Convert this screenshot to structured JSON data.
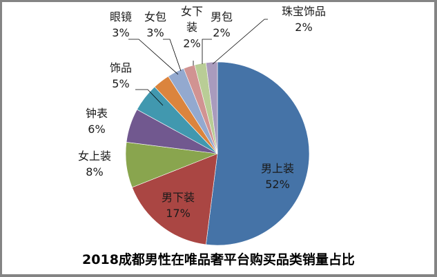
{
  "chart_data": {
    "type": "pie",
    "title": "2018成都男性在唯品奢平台购买品类销量占比",
    "start_angle": "12 o'clock",
    "direction": "clockwise",
    "categories": [
      "男上装",
      "男下装",
      "女上装",
      "钟表",
      "饰品",
      "眼镜",
      "女包",
      "女下装",
      "男包",
      "珠宝饰品"
    ],
    "values": [
      52,
      17,
      8,
      6,
      5,
      3,
      3,
      2,
      2,
      2
    ],
    "value_labels": [
      "52%",
      "17%",
      "8%",
      "6%",
      "5%",
      "3%",
      "3%",
      "2%",
      "2%",
      "2%"
    ],
    "colors": [
      "#4573A7",
      "#AA4643",
      "#89A54E",
      "#71588F",
      "#4198AF",
      "#DB843D",
      "#93A9CF",
      "#D19392",
      "#B9CD96",
      "#A99BBD"
    ],
    "legend": "none",
    "data_labels": "category name and percentage"
  }
}
